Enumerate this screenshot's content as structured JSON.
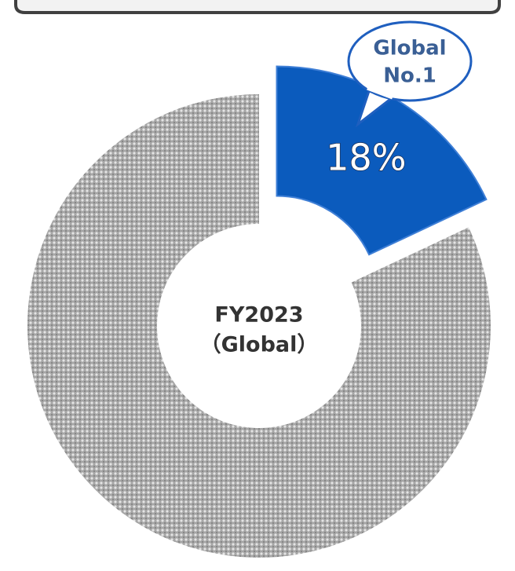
{
  "chart_data": {
    "type": "pie",
    "values": [
      18,
      82
    ],
    "value_labels": [
      "18%",
      null
    ],
    "colors": [
      "#0b5bbd",
      "#a6a6a6"
    ],
    "donut": true,
    "center_label": [
      "FY2023",
      "（Global）"
    ],
    "annotation": [
      "Global",
      "No.1"
    ]
  }
}
